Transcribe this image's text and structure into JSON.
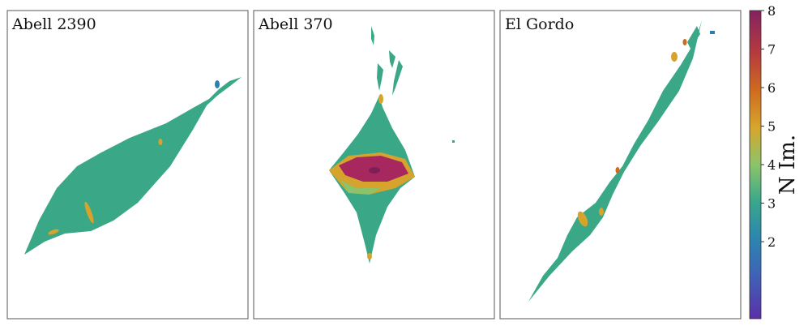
{
  "chart_data": {
    "type": "heatmap",
    "panels": [
      {
        "title": "Abell 2390"
      },
      {
        "title": "Abell 370"
      },
      {
        "title": "El Gordo"
      }
    ],
    "colorbar": {
      "label": "N Im.",
      "range": [
        0,
        8
      ],
      "ticks": [
        "2",
        "3",
        "4",
        "5",
        "6",
        "7",
        "8"
      ],
      "colors": {
        "1": "#5a2ea6",
        "2": "#2c7fb0",
        "3": "#3aa887",
        "4": "#8cc26a",
        "5": "#d6a32c",
        "6": "#cf6a1e",
        "7": "#b73a3c",
        "8": "#8a2466"
      }
    },
    "grid": false
  }
}
